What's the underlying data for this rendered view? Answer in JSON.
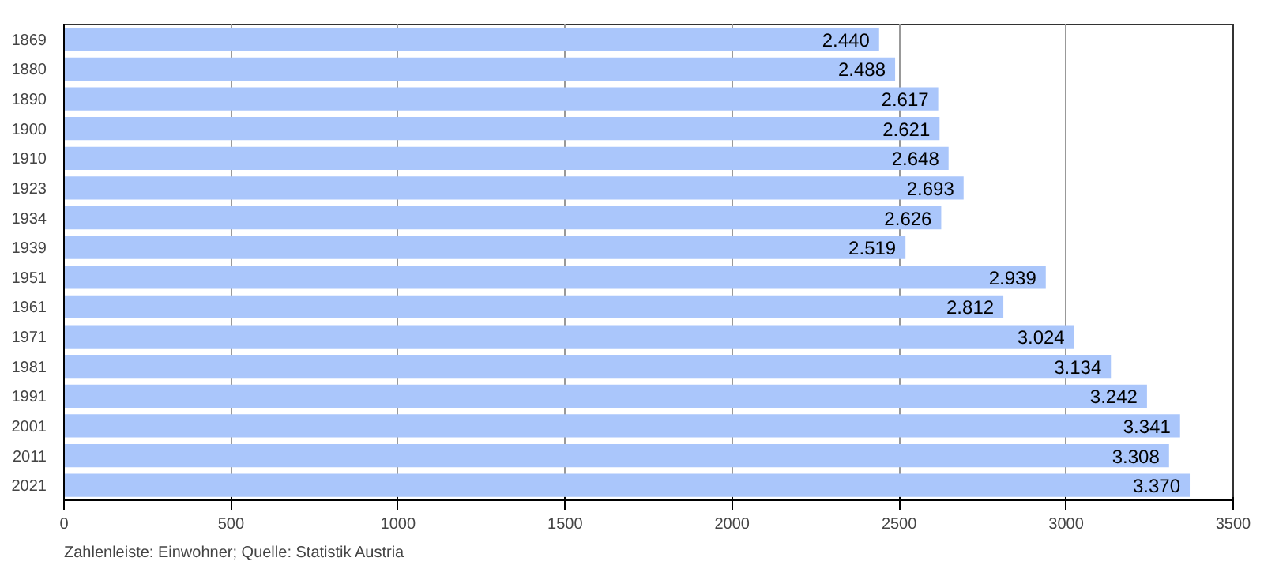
{
  "chart_data": {
    "type": "bar",
    "orientation": "horizontal",
    "categories": [
      "1869",
      "1880",
      "1890",
      "1900",
      "1910",
      "1923",
      "1934",
      "1939",
      "1951",
      "1961",
      "1971",
      "1981",
      "1991",
      "2001",
      "2011",
      "2021"
    ],
    "values": [
      2440,
      2488,
      2617,
      2621,
      2648,
      2693,
      2626,
      2519,
      2939,
      2812,
      3024,
      3134,
      3242,
      3341,
      3308,
      3370
    ],
    "value_labels": [
      "2.440",
      "2.488",
      "2.617",
      "2.621",
      "2.648",
      "2.693",
      "2.626",
      "2.519",
      "2.939",
      "2.812",
      "3.024",
      "3.134",
      "3.242",
      "3.341",
      "3.308",
      "3.370"
    ],
    "color": "#aac6fb",
    "xlim": [
      0,
      3500
    ],
    "xticks": [
      0,
      500,
      1000,
      1500,
      2000,
      2500,
      3000,
      3500
    ],
    "grid": "x",
    "annotations": [
      "Zahlenleiste: Einwohner; Quelle: Statistik Austria"
    ]
  }
}
